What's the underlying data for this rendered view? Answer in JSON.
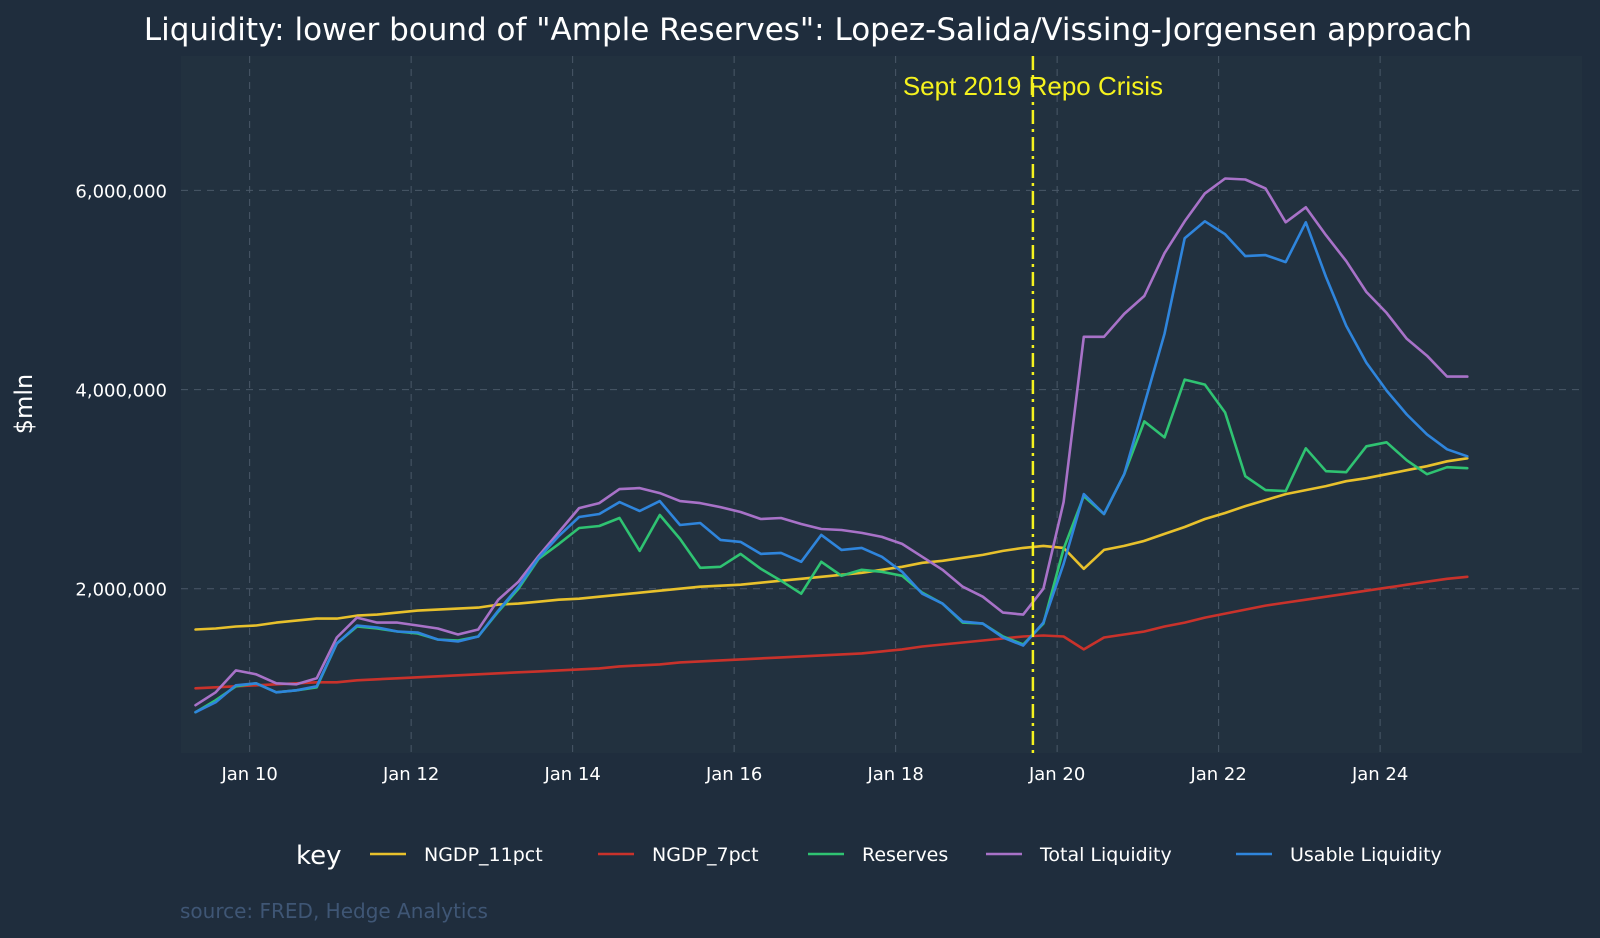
{
  "chart_data": {
    "type": "line",
    "title": "Liquidity: lower bound of \"Ample Reserves\": Lopez-Salida/Vissing-Jorgensen approach",
    "xlabel": "",
    "ylabel": "$mln",
    "xlim": [
      2009.15,
      2026.5
    ],
    "ylim": [
      350000,
      7350000
    ],
    "x_ticks": [
      2010,
      2012,
      2014,
      2016,
      2018,
      2020,
      2022,
      2024
    ],
    "x_tick_labels": [
      "Jan 10",
      "Jan 12",
      "Jan 14",
      "Jan 16",
      "Jan 18",
      "Jan 20",
      "Jan 22",
      "Jan 24"
    ],
    "y_ticks": [
      2000000,
      4000000,
      6000000
    ],
    "y_tick_labels": [
      "2,000,000",
      "4,000,000",
      "6,000,000"
    ],
    "grid": true,
    "legend": {
      "title": "key",
      "position": "bottom"
    },
    "annotation": {
      "text": "Sept 2019 Repo Crisis",
      "x": 2019.7,
      "color": "#f5f21e"
    },
    "source": "source: FRED, Hedge Analytics",
    "x": [
      2009.33,
      2009.58,
      2009.83,
      2010.08,
      2010.33,
      2010.58,
      2010.83,
      2011.08,
      2011.33,
      2011.58,
      2011.83,
      2012.08,
      2012.33,
      2012.58,
      2012.83,
      2013.08,
      2013.33,
      2013.58,
      2013.83,
      2014.08,
      2014.33,
      2014.58,
      2014.83,
      2015.08,
      2015.33,
      2015.58,
      2015.83,
      2016.08,
      2016.33,
      2016.58,
      2016.83,
      2017.08,
      2017.33,
      2017.58,
      2017.83,
      2018.08,
      2018.33,
      2018.58,
      2018.83,
      2019.08,
      2019.33,
      2019.58,
      2019.83,
      2020.08,
      2020.33,
      2020.58,
      2020.83,
      2021.08,
      2021.33,
      2021.58,
      2021.83,
      2022.08,
      2022.33,
      2022.58,
      2022.83,
      2023.08,
      2023.33,
      2023.58,
      2023.83,
      2024.08,
      2024.33,
      2024.58,
      2024.83,
      2025.08
    ],
    "series": [
      {
        "name": "NGDP_11pct",
        "color": "#e8c12c",
        "values": [
          1590000,
          1600000,
          1620000,
          1630000,
          1660000,
          1680000,
          1700000,
          1700000,
          1730000,
          1740000,
          1760000,
          1780000,
          1790000,
          1800000,
          1810000,
          1840000,
          1850000,
          1870000,
          1890000,
          1900000,
          1920000,
          1940000,
          1960000,
          1980000,
          2000000,
          2020000,
          2030000,
          2040000,
          2060000,
          2080000,
          2100000,
          2120000,
          2140000,
          2160000,
          2190000,
          2220000,
          2260000,
          2280000,
          2310000,
          2340000,
          2380000,
          2410000,
          2430000,
          2410000,
          2200000,
          2390000,
          2430000,
          2480000,
          2550000,
          2620000,
          2700000,
          2760000,
          2830000,
          2890000,
          2950000,
          2990000,
          3030000,
          3080000,
          3110000,
          3150000,
          3190000,
          3230000,
          3280000,
          3310000
        ]
      },
      {
        "name": "NGDP_7pct",
        "color": "#c9322b",
        "values": [
          1000000,
          1010000,
          1020000,
          1030000,
          1040000,
          1050000,
          1060000,
          1060000,
          1080000,
          1090000,
          1100000,
          1110000,
          1120000,
          1130000,
          1140000,
          1150000,
          1160000,
          1170000,
          1180000,
          1190000,
          1200000,
          1220000,
          1230000,
          1240000,
          1260000,
          1270000,
          1280000,
          1290000,
          1300000,
          1310000,
          1320000,
          1330000,
          1340000,
          1350000,
          1370000,
          1390000,
          1420000,
          1440000,
          1460000,
          1480000,
          1500000,
          1520000,
          1530000,
          1520000,
          1390000,
          1510000,
          1540000,
          1570000,
          1620000,
          1660000,
          1710000,
          1750000,
          1790000,
          1830000,
          1860000,
          1890000,
          1920000,
          1950000,
          1980000,
          2010000,
          2040000,
          2070000,
          2100000,
          2120000
        ]
      },
      {
        "name": "Reserves",
        "color": "#2fc372",
        "values": [
          760000,
          880000,
          1020000,
          1050000,
          960000,
          980000,
          1010000,
          1450000,
          1620000,
          1600000,
          1570000,
          1550000,
          1490000,
          1480000,
          1520000,
          1770000,
          2000000,
          2300000,
          2450000,
          2610000,
          2630000,
          2710000,
          2380000,
          2740000,
          2500000,
          2210000,
          2220000,
          2350000,
          2200000,
          2080000,
          1950000,
          2270000,
          2130000,
          2190000,
          2170000,
          2130000,
          1960000,
          1850000,
          1660000,
          1650000,
          1520000,
          1440000,
          1650000,
          2400000,
          2930000,
          2750000,
          3150000,
          3680000,
          3520000,
          4100000,
          4050000,
          3770000,
          3130000,
          2990000,
          2980000,
          3410000,
          3180000,
          3170000,
          3430000,
          3470000,
          3290000,
          3150000,
          3220000,
          3210000
        ]
      },
      {
        "name": "Total Liquidity",
        "color": "#a872c8",
        "values": [
          830000,
          960000,
          1180000,
          1140000,
          1050000,
          1040000,
          1100000,
          1510000,
          1710000,
          1660000,
          1660000,
          1630000,
          1600000,
          1540000,
          1590000,
          1890000,
          2070000,
          2330000,
          2570000,
          2810000,
          2860000,
          3000000,
          3010000,
          2960000,
          2880000,
          2860000,
          2820000,
          2770000,
          2700000,
          2710000,
          2650000,
          2600000,
          2590000,
          2560000,
          2520000,
          2450000,
          2320000,
          2190000,
          2020000,
          1920000,
          1760000,
          1740000,
          2000000,
          2870000,
          4530000,
          4530000,
          4760000,
          4940000,
          5370000,
          5690000,
          5970000,
          6120000,
          6110000,
          6020000,
          5680000,
          5830000,
          5550000,
          5290000,
          4980000,
          4770000,
          4510000,
          4340000,
          4130000,
          4130000
        ]
      },
      {
        "name": "Usable Liquidity",
        "color": "#2f85dc",
        "values": [
          760000,
          860000,
          1030000,
          1050000,
          960000,
          980000,
          1020000,
          1450000,
          1630000,
          1610000,
          1570000,
          1560000,
          1490000,
          1470000,
          1520000,
          1780000,
          2020000,
          2310000,
          2530000,
          2720000,
          2750000,
          2870000,
          2780000,
          2880000,
          2640000,
          2660000,
          2490000,
          2470000,
          2350000,
          2360000,
          2270000,
          2540000,
          2390000,
          2410000,
          2320000,
          2170000,
          1950000,
          1850000,
          1670000,
          1650000,
          1510000,
          1430000,
          1660000,
          2250000,
          2950000,
          2750000,
          3150000,
          3850000,
          4560000,
          5520000,
          5690000,
          5560000,
          5340000,
          5350000,
          5280000,
          5680000,
          5130000,
          4640000,
          4270000,
          3990000,
          3750000,
          3550000,
          3400000,
          3330000
        ]
      }
    ]
  }
}
